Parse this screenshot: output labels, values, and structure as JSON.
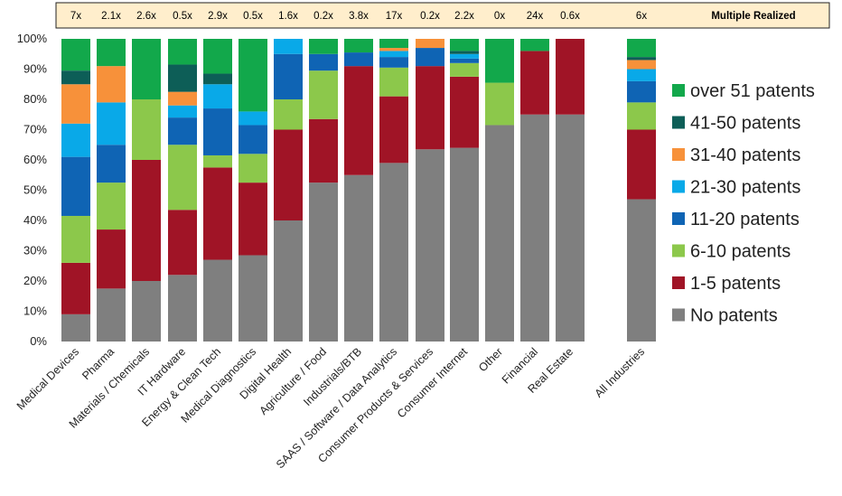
{
  "chart_data": {
    "type": "bar",
    "stacked": true,
    "percent": true,
    "multiple_header": {
      "title": "Multiple Realized",
      "values": [
        "7x",
        "2.1x",
        "2.6x",
        "0.5x",
        "2.9x",
        "0.5x",
        "1.6x",
        "0.2x",
        "3.8x",
        "17x",
        "0.2x",
        "2.2x",
        "0x",
        "24x",
        "0.6x",
        "6x"
      ]
    },
    "categories": [
      "Medical Devices",
      "Pharma",
      "Materials / Chemicals",
      "IT Hardware",
      "Energy & Clean Tech",
      "Medical Diagnostics",
      "Digital Health",
      "Agriculture / Food",
      "Industrials/BTB",
      "SAAS / Software / Data Analytics",
      "Consumer Products & Services",
      "Consumer Internet",
      "Other",
      "Financial",
      "Real Estate",
      "All Industries"
    ],
    "yticks": [
      "0%",
      "10%",
      "20%",
      "30%",
      "40%",
      "50%",
      "60%",
      "70%",
      "80%",
      "90%",
      "100%"
    ],
    "ylim": [
      0,
      100
    ],
    "grid": false,
    "legend_position": "right",
    "series": [
      {
        "name": "No patents",
        "color": "#7f7f7f",
        "values": [
          9,
          17.5,
          20,
          22,
          27,
          28.5,
          40,
          52.5,
          55,
          59,
          63.5,
          64,
          71.5,
          75,
          75,
          47
        ]
      },
      {
        "name": "1-5 patents",
        "color": "#a01426",
        "values": [
          17,
          19.5,
          40,
          21.5,
          30.5,
          24,
          30,
          21,
          36,
          22,
          27.5,
          23.5,
          0,
          21,
          25,
          23
        ]
      },
      {
        "name": "6-10 patents",
        "color": "#8cc84b",
        "values": [
          15.5,
          15.5,
          20,
          21.5,
          4,
          9.5,
          10,
          16,
          0,
          9.5,
          0,
          4.5,
          14,
          0,
          0,
          9
        ]
      },
      {
        "name": "11-20 patents",
        "color": "#0f64b4",
        "values": [
          19.5,
          12.5,
          0,
          9,
          15.5,
          9.5,
          15,
          5.5,
          4.5,
          3.5,
          6,
          1.5,
          0,
          0,
          0,
          7
        ]
      },
      {
        "name": "21-30 patents",
        "color": "#09a9e8",
        "values": [
          11,
          14,
          0,
          4,
          8,
          4.5,
          5,
          0,
          0,
          2,
          0,
          1.5,
          0,
          0,
          0,
          4
        ]
      },
      {
        "name": "31-40 patents",
        "color": "#f7913a",
        "values": [
          13,
          12,
          0,
          4.5,
          0,
          0,
          0,
          0,
          0,
          1,
          3,
          0,
          0,
          0,
          0,
          3
        ]
      },
      {
        "name": "41-50 patents",
        "color": "#0d5e57",
        "values": [
          4.5,
          0,
          0,
          9,
          3.5,
          0,
          0,
          0,
          0,
          0,
          0,
          1,
          0,
          0,
          0,
          1
        ]
      },
      {
        "name": "over 51 patents",
        "color": "#12a84b",
        "values": [
          10.5,
          9,
          20,
          8.5,
          11.5,
          24,
          0,
          5,
          4.5,
          3,
          0,
          4,
          14.5,
          4,
          0,
          6
        ]
      }
    ]
  }
}
